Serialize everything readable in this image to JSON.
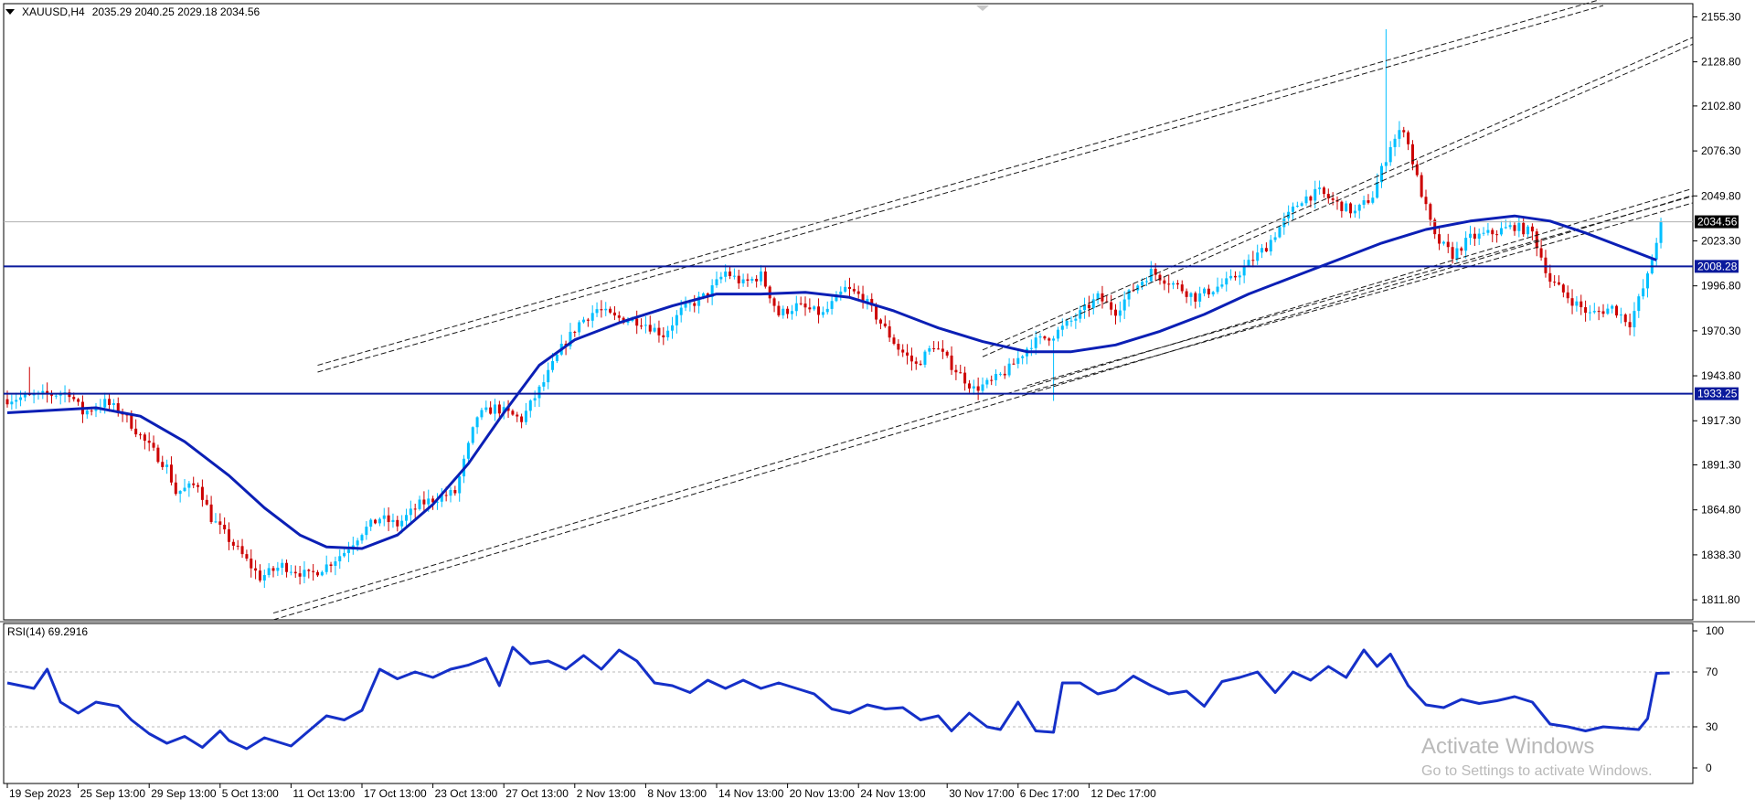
{
  "header": {
    "symbol": "XAUUSD,H4",
    "ohlc": "2035.29 2040.25 2029.18 2034.56"
  },
  "rsi_header": "RSI(14) 69.2916",
  "watermark": {
    "title": "Activate Windows",
    "subtitle": "Go to Settings to activate Windows."
  },
  "colors": {
    "bull": "#00bfff",
    "bear": "#cc0000",
    "ma": "#0b1fb5",
    "hline": "#0a1a9c",
    "channel": "#1a1a1a",
    "rsi": "#1530c8"
  },
  "chart_data": [
    {
      "type": "candlestick",
      "title": "XAUUSD,H4",
      "ylim": [
        1800,
        2162
      ],
      "y_ticks": [
        "2155.30",
        "2128.80",
        "2102.80",
        "2076.30",
        "2049.80",
        "2023.30",
        "1996.80",
        "1970.30",
        "1943.80",
        "1917.30",
        "1891.30",
        "1864.80",
        "1838.30",
        "1811.80"
      ],
      "x_ticks": [
        "19 Sep 2023",
        "25 Sep 13:00",
        "29 Sep 13:00",
        "5 Oct 13:00",
        "11 Oct 13:00",
        "17 Oct 13:00",
        "23 Oct 13:00",
        "27 Oct 13:00",
        "2 Nov 13:00",
        "8 Nov 13:00",
        "14 Nov 13:00",
        "20 Nov 13:00",
        "24 Nov 13:00",
        "30 Nov 17:00",
        "6 Dec 17:00",
        "12 Dec 17:00"
      ],
      "current_price": "2034.56",
      "horizontal_levels": [
        {
          "label": "2008.28",
          "value": 2008.28
        },
        {
          "label": "1933.25",
          "value": 1933.25
        }
      ],
      "price_path": [
        [
          0,
          1930
        ],
        [
          14,
          1934
        ],
        [
          17,
          1922
        ],
        [
          22,
          1928
        ],
        [
          26,
          1922
        ],
        [
          31,
          1905
        ],
        [
          36,
          1890
        ],
        [
          38,
          1875
        ],
        [
          43,
          1880
        ],
        [
          46,
          1860
        ],
        [
          53,
          1838
        ],
        [
          57,
          1825
        ],
        [
          62,
          1832
        ],
        [
          68,
          1826
        ],
        [
          72,
          1832
        ],
        [
          76,
          1840
        ],
        [
          80,
          1852
        ],
        [
          84,
          1860
        ],
        [
          88,
          1856
        ],
        [
          93,
          1868
        ],
        [
          97,
          1872
        ],
        [
          101,
          1875
        ],
        [
          106,
          1920
        ],
        [
          110,
          1925
        ],
        [
          116,
          1918
        ],
        [
          121,
          1940
        ],
        [
          125,
          1960
        ],
        [
          129,
          1975
        ],
        [
          133,
          1983
        ],
        [
          137,
          1978
        ],
        [
          143,
          1976
        ],
        [
          148,
          1968
        ],
        [
          152,
          1982
        ],
        [
          158,
          1992
        ],
        [
          162,
          2005
        ],
        [
          166,
          1998
        ],
        [
          170,
          2003
        ],
        [
          174,
          1980
        ],
        [
          178,
          1985
        ],
        [
          184,
          1980
        ],
        [
          189,
          1995
        ],
        [
          193,
          1990
        ],
        [
          197,
          1975
        ],
        [
          201,
          1960
        ],
        [
          205,
          1950
        ],
        [
          209,
          1962
        ],
        [
          213,
          1950
        ],
        [
          218,
          1936
        ],
        [
          222,
          1940
        ],
        [
          226,
          1948
        ],
        [
          231,
          1963
        ],
        [
          236,
          1968
        ],
        [
          241,
          1978
        ],
        [
          246,
          1990
        ],
        [
          250,
          1982
        ],
        [
          254,
          1995
        ],
        [
          258,
          2005
        ],
        [
          263,
          1998
        ],
        [
          268,
          1990
        ],
        [
          272,
          1995
        ],
        [
          276,
          2000
        ],
        [
          280,
          2010
        ],
        [
          284,
          2020
        ],
        [
          288,
          2035
        ],
        [
          292,
          2048
        ],
        [
          296,
          2052
        ],
        [
          300,
          2045
        ],
        [
          304,
          2040
        ],
        [
          308,
          2050
        ],
        [
          312,
          2080
        ],
        [
          315,
          2090
        ],
        [
          318,
          2060
        ],
        [
          322,
          2025
        ],
        [
          326,
          2015
        ],
        [
          330,
          2025
        ],
        [
          335,
          2028
        ],
        [
          340,
          2032
        ],
        [
          344,
          2028
        ],
        [
          348,
          2000
        ],
        [
          353,
          1988
        ],
        [
          357,
          1980
        ],
        [
          362,
          1984
        ],
        [
          366,
          1975
        ],
        [
          370,
          2002
        ],
        [
          373,
          2034.56
        ]
      ],
      "moving_average": [
        [
          0,
          1922
        ],
        [
          20,
          1925
        ],
        [
          30,
          1920
        ],
        [
          40,
          1905
        ],
        [
          50,
          1885
        ],
        [
          58,
          1866
        ],
        [
          66,
          1850
        ],
        [
          72,
          1843
        ],
        [
          80,
          1842
        ],
        [
          88,
          1850
        ],
        [
          96,
          1868
        ],
        [
          104,
          1892
        ],
        [
          112,
          1922
        ],
        [
          120,
          1950
        ],
        [
          128,
          1965
        ],
        [
          138,
          1975
        ],
        [
          150,
          1985
        ],
        [
          160,
          1992
        ],
        [
          170,
          1992
        ],
        [
          180,
          1993
        ],
        [
          190,
          1990
        ],
        [
          200,
          1982
        ],
        [
          210,
          1972
        ],
        [
          220,
          1964
        ],
        [
          230,
          1958
        ],
        [
          240,
          1958
        ],
        [
          250,
          1962
        ],
        [
          260,
          1970
        ],
        [
          270,
          1980
        ],
        [
          280,
          1992
        ],
        [
          290,
          2002
        ],
        [
          300,
          2012
        ],
        [
          310,
          2022
        ],
        [
          320,
          2030
        ],
        [
          330,
          2035
        ],
        [
          340,
          2038
        ],
        [
          348,
          2035
        ],
        [
          356,
          2028
        ],
        [
          364,
          2020
        ],
        [
          372,
          2012
        ]
      ],
      "channels": [
        {
          "p1": [
            60,
            1800
          ],
          "p2": [
            380,
            2050
          ],
          "gap": 4
        },
        {
          "p1": [
            230,
            1934
          ],
          "p2": [
            464,
            2108
          ],
          "gap": 4
        },
        {
          "p1": [
            70,
            1946
          ],
          "p2": [
            360,
            2162
          ],
          "gap": 4
        },
        {
          "p1": [
            220,
            1955
          ],
          "p2": [
            400,
            2162
          ],
          "gap": 4
        }
      ]
    },
    {
      "type": "line",
      "title": "RSI(14) 69.2916",
      "ylim": [
        0,
        100
      ],
      "y_ticks": [
        "100",
        "70",
        "30",
        "0"
      ],
      "reference_levels": [
        70,
        30
      ],
      "series": [
        {
          "name": "RSI(14)",
          "values": [
            [
              0,
              62
            ],
            [
              6,
              58
            ],
            [
              9,
              72
            ],
            [
              12,
              48
            ],
            [
              16,
              40
            ],
            [
              20,
              48
            ],
            [
              25,
              45
            ],
            [
              28,
              35
            ],
            [
              32,
              25
            ],
            [
              36,
              18
            ],
            [
              40,
              23
            ],
            [
              44,
              15
            ],
            [
              48,
              27
            ],
            [
              50,
              20
            ],
            [
              54,
              14
            ],
            [
              58,
              22
            ],
            [
              64,
              16
            ],
            [
              68,
              27
            ],
            [
              72,
              38
            ],
            [
              76,
              35
            ],
            [
              80,
              42
            ],
            [
              84,
              72
            ],
            [
              88,
              65
            ],
            [
              92,
              70
            ],
            [
              96,
              66
            ],
            [
              100,
              72
            ],
            [
              104,
              75
            ],
            [
              108,
              80
            ],
            [
              111,
              60
            ],
            [
              114,
              88
            ],
            [
              118,
              76
            ],
            [
              122,
              78
            ],
            [
              126,
              72
            ],
            [
              130,
              82
            ],
            [
              134,
              72
            ],
            [
              138,
              86
            ],
            [
              142,
              78
            ],
            [
              146,
              62
            ],
            [
              150,
              60
            ],
            [
              154,
              55
            ],
            [
              158,
              64
            ],
            [
              162,
              58
            ],
            [
              166,
              64
            ],
            [
              170,
              58
            ],
            [
              174,
              62
            ],
            [
              178,
              58
            ],
            [
              182,
              54
            ],
            [
              186,
              43
            ],
            [
              190,
              40
            ],
            [
              194,
              46
            ],
            [
              198,
              43
            ],
            [
              202,
              44
            ],
            [
              206,
              35
            ],
            [
              210,
              38
            ],
            [
              213,
              27
            ],
            [
              217,
              40
            ],
            [
              221,
              30
            ],
            [
              224,
              28
            ],
            [
              228,
              48
            ],
            [
              232,
              27
            ],
            [
              236,
              26
            ],
            [
              238,
              62
            ],
            [
              242,
              62
            ],
            [
              246,
              54
            ],
            [
              250,
              57
            ],
            [
              254,
              67
            ],
            [
              258,
              60
            ],
            [
              262,
              54
            ],
            [
              266,
              56
            ],
            [
              270,
              45
            ],
            [
              274,
              63
            ],
            [
              278,
              66
            ],
            [
              282,
              70
            ],
            [
              286,
              55
            ],
            [
              290,
              70
            ],
            [
              294,
              64
            ],
            [
              298,
              74
            ],
            [
              302,
              66
            ],
            [
              306,
              86
            ],
            [
              309,
              74
            ],
            [
              312,
              83
            ],
            [
              316,
              60
            ],
            [
              320,
              46
            ],
            [
              324,
              44
            ],
            [
              328,
              50
            ],
            [
              332,
              47
            ],
            [
              336,
              49
            ],
            [
              340,
              52
            ],
            [
              344,
              48
            ],
            [
              348,
              32
            ],
            [
              352,
              30
            ],
            [
              356,
              27
            ],
            [
              360,
              30
            ],
            [
              364,
              29
            ],
            [
              368,
              28
            ],
            [
              370,
              36
            ],
            [
              372,
              69
            ],
            [
              375,
              69.29
            ]
          ]
        }
      ]
    }
  ]
}
